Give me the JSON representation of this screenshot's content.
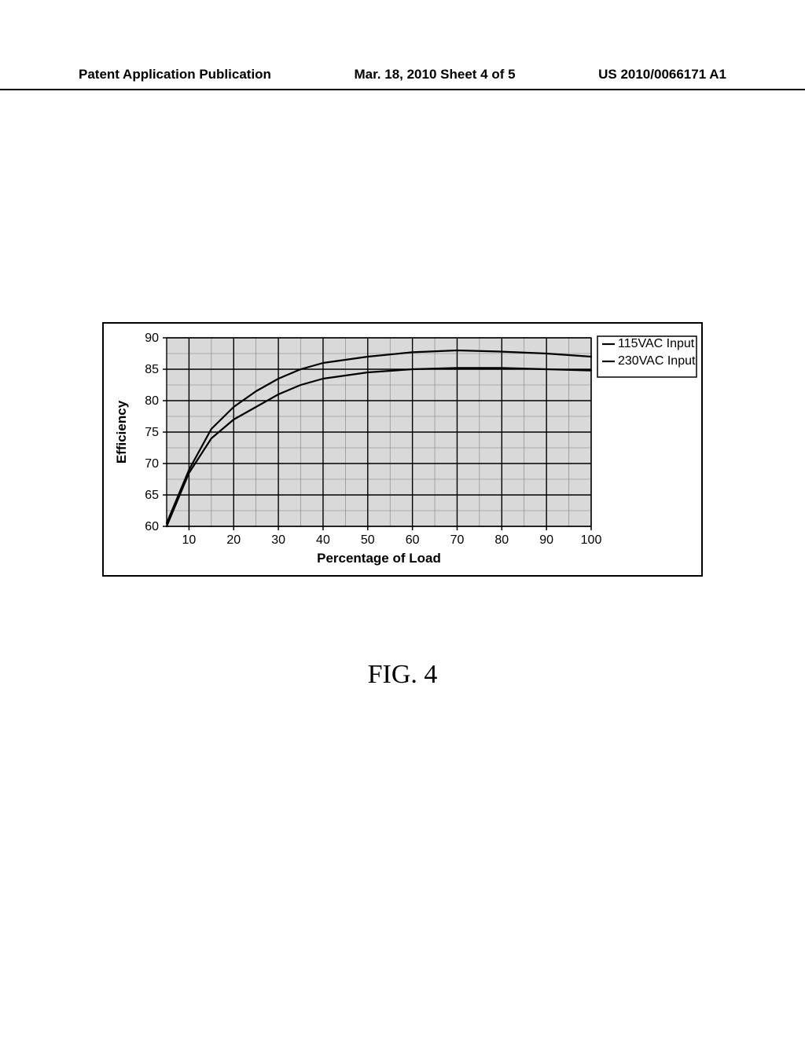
{
  "header": {
    "left": "Patent Application Publication",
    "center": "Mar. 18, 2010  Sheet 4 of 5",
    "right": "US 2010/0066171 A1"
  },
  "figure_label": "FIG. 4",
  "chart": {
    "type": "line",
    "xlabel": "Percentage of Load",
    "ylabel": "Efficiency",
    "xlabel_fontsize": 17,
    "ylabel_fontsize": 17,
    "xlim": [
      5,
      100
    ],
    "ylim": [
      60,
      90
    ],
    "xticks": [
      10,
      20,
      30,
      40,
      50,
      60,
      70,
      80,
      90,
      100
    ],
    "yticks": [
      60,
      65,
      70,
      75,
      80,
      85,
      90
    ],
    "xtick_step": 5,
    "ytick_step": 2.5,
    "tick_fontsize": 16,
    "plot_background_color": "#d9d9d9",
    "major_grid_color": "#000000",
    "minor_grid_color": "#808080",
    "major_grid_width": 1.4,
    "minor_grid_width": 0.6,
    "line_width": 2.2,
    "series": [
      {
        "name": "115VAC Input",
        "color": "#000000",
        "x": [
          5,
          10,
          15,
          20,
          25,
          30,
          35,
          40,
          50,
          60,
          70,
          80,
          90,
          100
        ],
        "y": [
          60,
          68.5,
          74,
          77,
          79,
          81,
          82.5,
          83.5,
          84.5,
          85,
          85.2,
          85.2,
          85,
          84.8
        ]
      },
      {
        "name": "230VAC Input",
        "color": "#000000",
        "x": [
          5,
          10,
          15,
          20,
          25,
          30,
          35,
          40,
          50,
          60,
          70,
          80,
          90,
          100
        ],
        "y": [
          60.5,
          69,
          75.5,
          79,
          81.5,
          83.5,
          85,
          86,
          87,
          87.7,
          88,
          87.8,
          87.5,
          87
        ]
      }
    ],
    "legend": {
      "items": [
        "115VAC Input",
        "230VAC Input"
      ],
      "position": "right",
      "border_color": "#000000",
      "background_color": "#ffffff",
      "fontsize": 16
    }
  }
}
